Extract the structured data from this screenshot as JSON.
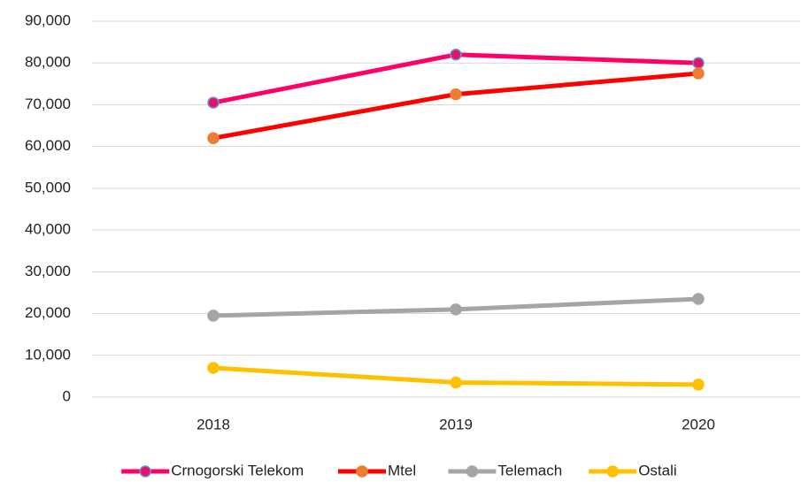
{
  "chart_data": {
    "type": "line",
    "categories": [
      "2018",
      "2019",
      "2020"
    ],
    "series": [
      {
        "name": "Crnogorski Telekom",
        "color": "#ff0066",
        "marker_color": "#e8106a",
        "marker_edge": "#5b9bd5",
        "values": [
          70500,
          82000,
          80000
        ]
      },
      {
        "name": "Mtel",
        "color": "#ff0000",
        "marker_color": "#ed7d31",
        "marker_edge": "#ed7d31",
        "values": [
          62000,
          72500,
          77500
        ]
      },
      {
        "name": "Telemach",
        "color": "#a5a5a5",
        "marker_color": "#a5a5a5",
        "marker_edge": "#a5a5a5",
        "values": [
          19500,
          21000,
          23500
        ]
      },
      {
        "name": "Ostali",
        "color": "#ffc000",
        "marker_color": "#ffc000",
        "marker_edge": "#ffc000",
        "values": [
          7000,
          3500,
          3000
        ]
      }
    ],
    "ylim": [
      0,
      90000
    ],
    "yticks": [
      0,
      {
        "value": 10000,
        "label": "10,000"
      },
      {
        "value": 20000,
        "label": "20,000"
      },
      {
        "value": 30000,
        "label": "30,000"
      },
      {
        "value": 40000,
        "label": "40,000"
      },
      {
        "value": 50000,
        "label": "50,000"
      },
      {
        "value": 60000,
        "label": "60,000"
      },
      {
        "value": 70000,
        "label": "70,000"
      },
      {
        "value": 80000,
        "label": "80,000"
      },
      {
        "value": 90000,
        "label": "90,000"
      }
    ],
    "grid": true,
    "legend": "bottom"
  }
}
